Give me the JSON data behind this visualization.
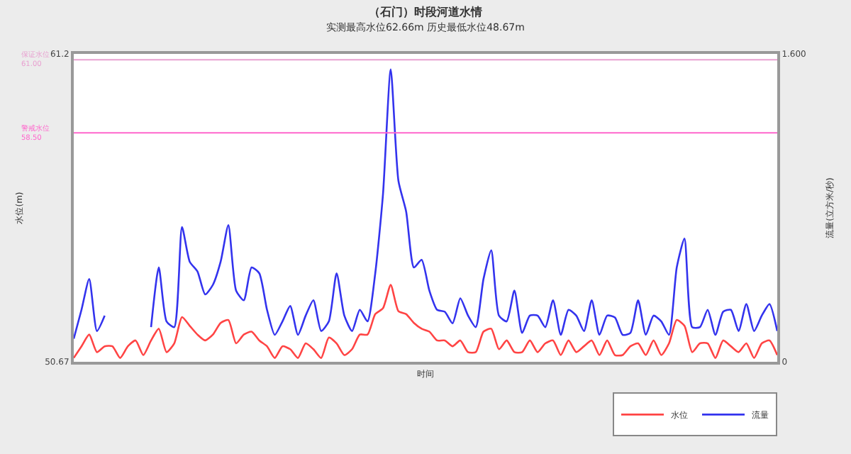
{
  "chart_data": {
    "type": "line",
    "title": "（石门）时段河道水情",
    "subtitle": "实测最高水位62.66m 历史最低水位48.67m",
    "xlabel": "时间",
    "ylabel": "水位(m)",
    "y2label": "流量(立方米/秒)",
    "categories": [
      null,
      null,
      null,
      null,
      null,
      null,
      null,
      null,
      null,
      null,
      null,
      null,
      null,
      null,
      null,
      null,
      null,
      null,
      null,
      null,
      null,
      null,
      null,
      null,
      null,
      null,
      null,
      null,
      null,
      null,
      null,
      null,
      null,
      null,
      null,
      null,
      null,
      null,
      null,
      null,
      null,
      null,
      null,
      null,
      null,
      null,
      null,
      null,
      null,
      null,
      null,
      null,
      null,
      null,
      null,
      null,
      null,
      null,
      null,
      null,
      null,
      null,
      null,
      null,
      null,
      null,
      null,
      null,
      null,
      null,
      null,
      null,
      null,
      null,
      null,
      null,
      null,
      null,
      null,
      null,
      null,
      null,
      null,
      null,
      null,
      null,
      null,
      null,
      null,
      null,
      null,
      null
    ],
    "series": [
      {
        "name": "水位",
        "color": "#ff4444",
        "values": [
          50.8,
          51.2,
          51.6,
          51.0,
          51.2,
          51.2,
          50.8,
          51.2,
          51.4,
          50.9,
          51.4,
          51.8,
          51.0,
          51.3,
          52.2,
          51.9,
          51.6,
          51.4,
          51.6,
          52.0,
          52.1,
          51.3,
          51.6,
          51.7,
          51.4,
          51.2,
          50.8,
          51.2,
          51.1,
          50.8,
          51.3,
          51.1,
          50.8,
          51.5,
          51.3,
          50.9,
          51.1,
          51.6,
          51.6,
          52.3,
          52.5,
          53.3,
          52.4,
          52.3,
          52.0,
          51.8,
          51.7,
          51.4,
          51.4,
          51.2,
          51.4,
          51.0,
          51.0,
          51.7,
          51.8,
          51.1,
          51.4,
          51.0,
          51.0,
          51.4,
          51.0,
          51.3,
          51.4,
          50.9,
          51.4,
          51.0,
          51.2,
          51.4,
          50.9,
          51.4,
          50.9,
          50.9,
          51.2,
          51.3,
          50.9,
          51.4,
          50.9,
          51.3,
          52.1,
          51.9,
          51.0,
          51.3,
          51.3,
          50.8,
          51.4,
          51.2,
          51.0,
          51.3,
          50.8,
          51.3,
          51.4,
          50.9
        ]
      },
      {
        "name": "流量",
        "color": "#3333ee",
        "axis": "y2",
        "values": [
          0.12,
          0.27,
          0.43,
          0.16,
          0.24,
          null,
          null,
          null,
          null,
          null,
          0.18,
          0.49,
          0.21,
          0.18,
          0.7,
          0.52,
          0.47,
          0.35,
          0.4,
          0.52,
          0.71,
          0.37,
          0.32,
          0.49,
          0.46,
          0.27,
          0.14,
          0.21,
          0.29,
          0.14,
          0.24,
          0.32,
          0.16,
          0.21,
          0.46,
          0.24,
          0.16,
          0.27,
          0.21,
          0.46,
          0.87,
          1.52,
          0.94,
          0.78,
          0.49,
          0.53,
          0.37,
          0.27,
          0.26,
          0.2,
          0.33,
          0.24,
          0.18,
          0.43,
          0.58,
          0.24,
          0.21,
          0.37,
          0.15,
          0.24,
          0.24,
          0.18,
          0.32,
          0.14,
          0.27,
          0.24,
          0.16,
          0.32,
          0.14,
          0.24,
          0.23,
          0.14,
          0.15,
          0.32,
          0.14,
          0.24,
          0.21,
          0.14,
          0.49,
          0.64,
          0.18,
          0.18,
          0.27,
          0.14,
          0.26,
          0.27,
          0.16,
          0.3,
          0.16,
          0.24,
          0.3,
          0.16
        ]
      }
    ],
    "ylim": [
      50.67,
      61.2
    ],
    "yticks": [
      50.67,
      61.2
    ],
    "y2lim": [
      0,
      1.6
    ],
    "y2ticks": [
      0,
      {
        "value": 1.6,
        "label": "1.600"
      }
    ],
    "ref_lines": [
      {
        "axis": "y",
        "value": 61.0,
        "label": "保证水位\n61.00",
        "color": "#e8a0d0"
      },
      {
        "axis": "y",
        "value": 58.5,
        "label": "警戒水位\n58.50",
        "color": "#ff66cc"
      }
    ],
    "marker": "none",
    "line_style": "solid",
    "legend": "bottom right"
  }
}
